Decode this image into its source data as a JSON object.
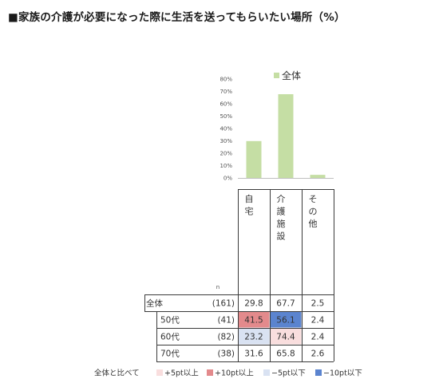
{
  "title": "■家族の介護が必要になった際に生活を送ってもらいたい場所（%）",
  "chart_data": {
    "type": "bar",
    "categories": [
      "自宅",
      "介護施設",
      "その他"
    ],
    "series": [
      {
        "name": "全体",
        "values": [
          29.8,
          67.7,
          2.5
        ],
        "color": "#c5dea4"
      }
    ],
    "yticks": [
      "80%",
      "70%",
      "60%",
      "50%",
      "40%",
      "30%",
      "20%",
      "10%",
      "0%"
    ],
    "ylim": [
      0,
      80
    ],
    "legend_position": "top"
  },
  "table": {
    "col_heads": [
      "自\n宅",
      "介\n護\n施\n設",
      "そ\nの\n他"
    ],
    "n_label": "n",
    "rows": [
      {
        "label": "全体",
        "n": "(161)",
        "values": [
          "29.8",
          "67.7",
          "2.5"
        ],
        "flags": [
          "",
          "",
          ""
        ]
      },
      {
        "label": "50代",
        "n": "(41)",
        "values": [
          "41.5",
          "56.1",
          "2.4"
        ],
        "flags": [
          "up10",
          "down10",
          ""
        ]
      },
      {
        "label": "60代",
        "n": "(82)",
        "values": [
          "23.2",
          "74.4",
          "2.4"
        ],
        "flags": [
          "down5",
          "up5",
          ""
        ]
      },
      {
        "label": "70代",
        "n": "(38)",
        "values": [
          "31.6",
          "65.8",
          "2.6"
        ],
        "flags": [
          "",
          "",
          ""
        ]
      }
    ]
  },
  "footnote": {
    "prefix": "全体と比べて",
    "items": [
      {
        "key": "up5",
        "label": "+5pt以上",
        "color": "#f9dede"
      },
      {
        "key": "up10",
        "label": "+10pt以上",
        "color": "#e38a8c"
      },
      {
        "key": "down5",
        "label": "−5pt以下",
        "color": "#d9e2f2"
      },
      {
        "key": "down10",
        "label": "−10pt以下",
        "color": "#5b84cf"
      }
    ]
  }
}
